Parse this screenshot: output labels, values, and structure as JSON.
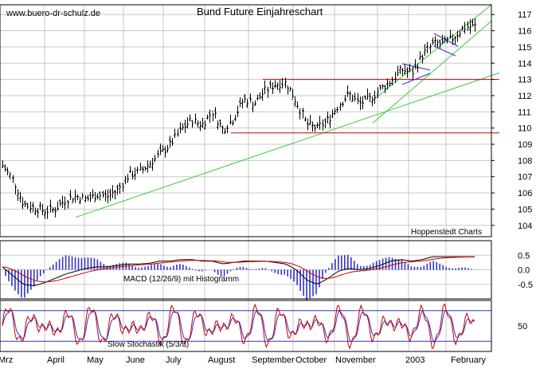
{
  "chart_data": [
    {
      "type": "ohlc",
      "title": "Bund Future Einjahreschart",
      "watermark": "www.buero-dr-schulz.de",
      "credit": "Hoppenstedt Charts",
      "x_labels": [
        "Mrz",
        "April",
        "May",
        "June",
        "July",
        "August",
        "September",
        "October",
        "November",
        "2003",
        "February"
      ],
      "y_ticks": [
        104,
        105,
        106,
        107,
        108,
        109,
        110,
        111,
        112,
        113,
        114,
        115,
        116,
        117
      ],
      "ylim": [
        103.3,
        117.6
      ],
      "grid": true,
      "grid_color": "#c8c8c8",
      "bar_color": "#000000",
      "approx_closes_by_week": [
        107.7,
        106.8,
        105.3,
        105.1,
        104.9,
        105.0,
        105.6,
        105.8,
        105.6,
        105.9,
        105.8,
        106.2,
        107.1,
        107.3,
        107.8,
        108.4,
        109.0,
        109.9,
        110.5,
        110.2,
        111.0,
        109.9,
        110.6,
        111.8,
        111.5,
        112.3,
        112.7,
        112.8,
        111.6,
        110.2,
        110.0,
        110.5,
        111.4,
        112.1,
        111.5,
        111.8,
        112.4,
        112.9,
        113.6,
        113.4,
        114.5,
        115.2,
        115.2,
        115.6,
        116.2,
        116.3
      ],
      "lines": [
        {
          "kind": "trendline",
          "color": "#33cc33",
          "from": [
            "early May",
            104.5
          ],
          "to": [
            "late February",
            113.5
          ]
        },
        {
          "kind": "channel-upper",
          "color": "#33cc33",
          "from": [
            "mid November",
            111.8
          ],
          "to": [
            "late February",
            117.6
          ]
        },
        {
          "kind": "channel-lower",
          "color": "#33cc33",
          "from": [
            "mid November",
            110.3
          ],
          "to": [
            "late February",
            116.6
          ]
        },
        {
          "kind": "horizontal",
          "color": "#cc0000",
          "level": 113.0,
          "span": [
            "early September",
            "end"
          ]
        },
        {
          "kind": "horizontal",
          "color": "#cc0000",
          "level": 109.7,
          "span": [
            "late August",
            "end"
          ]
        }
      ]
    },
    {
      "type": "macd",
      "label": "MACD (12/26/9) mit Histogramm",
      "y_ticks": [
        0.5,
        0.0,
        -0.5
      ],
      "ylim": [
        -1.0,
        1.0
      ],
      "macd_color": "#000000",
      "signal_color": "#cc0000",
      "histogram_color": "#3333cc",
      "approx_macd_by_week": [
        0.1,
        -0.2,
        -0.5,
        -0.55,
        -0.45,
        -0.3,
        -0.15,
        -0.05,
        0.05,
        0.1,
        0.1,
        0.15,
        0.2,
        0.2,
        0.22,
        0.3,
        0.3,
        0.35,
        0.35,
        0.3,
        0.3,
        0.2,
        0.25,
        0.3,
        0.3,
        0.3,
        0.25,
        0.2,
        0.0,
        -0.35,
        -0.5,
        -0.3,
        -0.05,
        0.05,
        0.0,
        0.05,
        0.15,
        0.3,
        0.35,
        0.3,
        0.35,
        0.45,
        0.45,
        0.45,
        0.45,
        0.45
      ]
    },
    {
      "type": "stochastic",
      "label": "Slow Stochastik (5/3/3)",
      "y_ticks": [
        50
      ],
      "ylim": [
        0,
        100
      ],
      "k_color": "#cc0000",
      "d_color": "#3333cc",
      "reference_levels": [
        80,
        20
      ],
      "reference_color": "#3333cc"
    }
  ]
}
